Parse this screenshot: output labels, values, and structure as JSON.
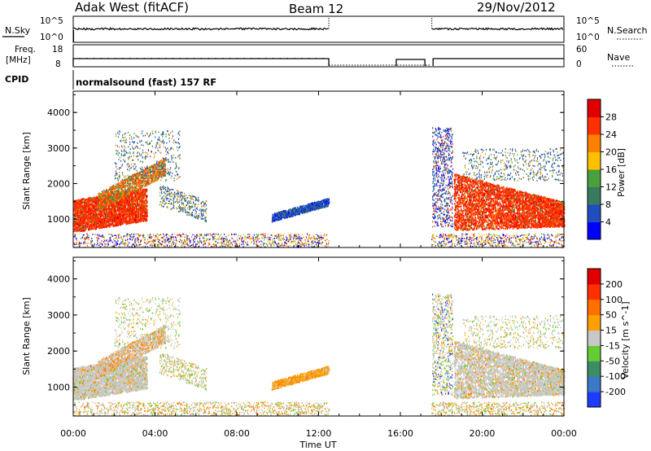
{
  "header": {
    "station": "Adak West (fitACF)",
    "beam": "Beam 12",
    "date": "29/Nov/2012"
  },
  "strip_sky": {
    "left_label": "N.Sky",
    "right_label": "N.Search",
    "tick_labels": [
      "10^5",
      "10^0"
    ]
  },
  "strip_freq": {
    "left_label_top": "Freq.",
    "left_label_unit": "[MHz]",
    "left_ticks": [
      "18",
      "8"
    ],
    "right_label": "Nave",
    "right_ticks": [
      "60",
      "0"
    ]
  },
  "cpid": {
    "label": "CPID",
    "program": "normalsound (fast) 157 RF"
  },
  "chart_data": [
    {
      "type": "heatmap",
      "name": "power",
      "ylabel": "Slant Range [km]",
      "yticks": [
        "1000",
        "2000",
        "3000",
        "4000"
      ],
      "ylim": [
        200,
        4600
      ],
      "colorbar_label": "Power [dB]",
      "colorbar_ticks": [
        "4",
        "8",
        "12",
        "16",
        "20",
        "24",
        "28"
      ],
      "colorbar_colors": [
        "#0000ff",
        "#1f4fbf",
        "#3a7a5e",
        "#4aa03c",
        "#ffc000",
        "#ff8000",
        "#ff3000",
        "#e00000"
      ],
      "data_gap_ut": [
        12.5,
        17.5
      ]
    },
    {
      "type": "heatmap",
      "name": "velocity",
      "ylabel": "Slant Range [km]",
      "yticks": [
        "1000",
        "2000",
        "3000",
        "4000"
      ],
      "ylim": [
        200,
        4600
      ],
      "colorbar_label": "Velocity [m s^-1]",
      "colorbar_ticks": [
        "200",
        "100",
        "50",
        "15",
        "-15",
        "-50",
        "-100",
        "-200"
      ],
      "colorbar_colors": [
        "#1e3cff",
        "#3a78c8",
        "#3c8c64",
        "#66cc33",
        "#c8c8c8",
        "#ffa000",
        "#ff7000",
        "#ff3000",
        "#e00000"
      ],
      "data_gap_ut": [
        12.5,
        17.5
      ]
    }
  ],
  "xaxis": {
    "label": "Time UT",
    "ticks": [
      "00:00",
      "04:00",
      "08:00",
      "12:00",
      "16:00",
      "20:00",
      "00:00"
    ],
    "range_hours": [
      0,
      24
    ]
  }
}
